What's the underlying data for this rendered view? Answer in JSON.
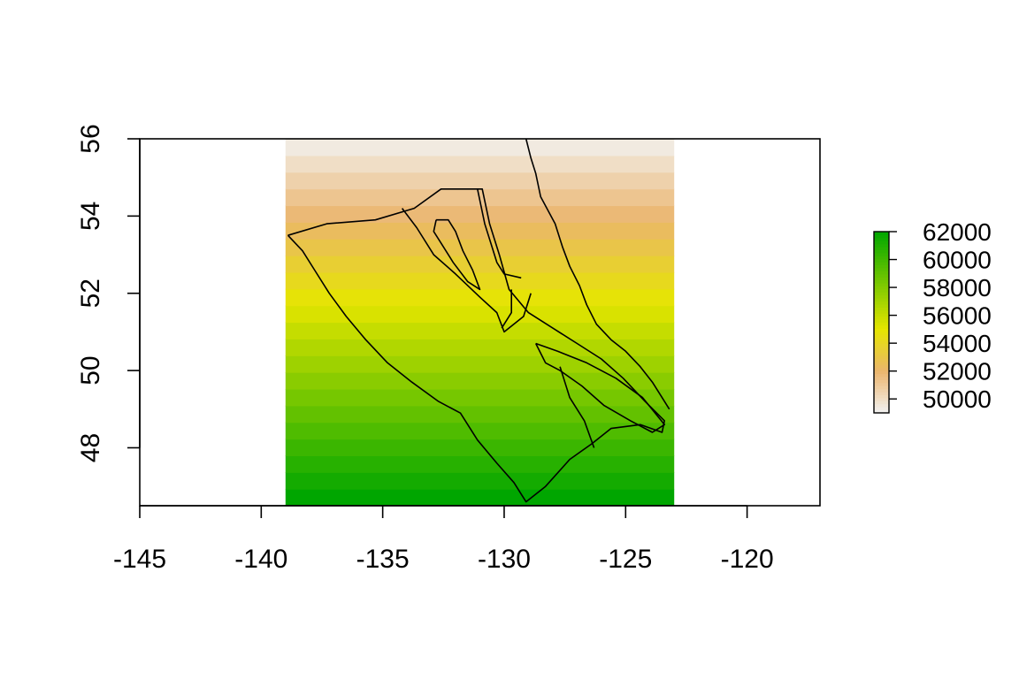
{
  "chart_data": {
    "type": "heatmap",
    "title": "",
    "xlabel": "",
    "ylabel": "",
    "xlim": [
      -145,
      -117
    ],
    "ylim": [
      46.5,
      56
    ],
    "x_ticks": [
      "-145",
      "-140",
      "-135",
      "-130",
      "-125",
      "-120"
    ],
    "x_tick_values": [
      -145,
      -140,
      -135,
      -130,
      -125,
      -120
    ],
    "y_ticks": [
      "48",
      "50",
      "52",
      "54",
      "56"
    ],
    "y_tick_values": [
      48,
      50,
      52,
      54,
      56
    ],
    "raster": {
      "xmin": -139,
      "xmax": -123,
      "ymin": 46.5,
      "ymax": 56,
      "row_values": [
        62000,
        61400,
        60800,
        60200,
        59600,
        59000,
        58400,
        57800,
        57200,
        56600,
        56000,
        55400,
        54800,
        54200,
        53600,
        53000,
        52400,
        51800,
        51200,
        50600,
        50000,
        49400
      ]
    },
    "legend": {
      "position": "right",
      "min": 49000,
      "max": 62000,
      "labels": [
        "62000",
        "60000",
        "58000",
        "56000",
        "54000",
        "52000",
        "50000"
      ],
      "label_values": [
        62000,
        60000,
        58000,
        56000,
        54000,
        52000,
        50000
      ],
      "color_stops": [
        {
          "value": 49000,
          "color": "#f2f2f2"
        },
        {
          "value": 52000,
          "color": "#ebb56d"
        },
        {
          "value": 55000,
          "color": "#e6e600"
        },
        {
          "value": 62000,
          "color": "#00a600"
        }
      ]
    },
    "overlay_polygons": [
      {
        "name": "outer region",
        "coords": [
          [
            -138.9,
            53.5
          ],
          [
            -138.3,
            53.1
          ],
          [
            -137.8,
            52.6
          ],
          [
            -137.2,
            52.0
          ],
          [
            -136.5,
            51.4
          ],
          [
            -135.7,
            50.8
          ],
          [
            -134.8,
            50.2
          ],
          [
            -133.8,
            49.7
          ],
          [
            -132.7,
            49.2
          ],
          [
            -131.8,
            48.9
          ],
          [
            -131.1,
            48.2
          ],
          [
            -130.3,
            47.6
          ],
          [
            -129.6,
            47.1
          ],
          [
            -129.1,
            46.6
          ],
          [
            -128.3,
            47.0
          ],
          [
            -127.3,
            47.7
          ],
          [
            -126.4,
            48.1
          ],
          [
            -125.6,
            48.5
          ],
          [
            -124.4,
            48.6
          ],
          [
            -123.5,
            48.4
          ],
          [
            -123.4,
            48.7
          ],
          [
            -124.2,
            49.2
          ],
          [
            -125.1,
            49.8
          ],
          [
            -126.0,
            50.3
          ],
          [
            -127.0,
            50.7
          ],
          [
            -128.0,
            51.1
          ],
          [
            -129.0,
            51.5
          ],
          [
            -129.8,
            52.1
          ],
          [
            -130.2,
            53.0
          ],
          [
            -130.6,
            53.8
          ],
          [
            -130.9,
            54.7
          ],
          [
            -131.8,
            54.7
          ],
          [
            -132.6,
            54.7
          ],
          [
            -133.7,
            54.2
          ],
          [
            -135.3,
            53.9
          ],
          [
            -137.3,
            53.8
          ],
          [
            -138.9,
            53.5
          ]
        ]
      },
      {
        "name": "inner boundary",
        "coords": [
          [
            -134.2,
            54.2
          ],
          [
            -133.6,
            53.7
          ],
          [
            -132.9,
            53.0
          ],
          [
            -132.0,
            52.5
          ],
          [
            -131.0,
            51.9
          ],
          [
            -130.3,
            51.5
          ],
          [
            -130.0,
            51.0
          ],
          [
            -129.2,
            51.4
          ],
          [
            -128.9,
            52.0
          ]
        ]
      },
      {
        "name": "north divider",
        "coords": [
          [
            -131.1,
            54.7
          ],
          [
            -130.8,
            53.8
          ],
          [
            -130.3,
            52.8
          ],
          [
            -130.0,
            52.5
          ],
          [
            -129.3,
            52.4
          ]
        ]
      },
      {
        "name": "mid divider",
        "coords": [
          [
            -129.7,
            52.1
          ],
          [
            -129.7,
            51.5
          ],
          [
            -130.1,
            51.1
          ]
        ]
      },
      {
        "name": "island outline",
        "coords": [
          [
            -128.7,
            50.7
          ],
          [
            -127.8,
            50.5
          ],
          [
            -126.6,
            50.2
          ],
          [
            -125.4,
            49.8
          ],
          [
            -124.3,
            49.3
          ],
          [
            -123.4,
            48.6
          ],
          [
            -123.9,
            48.4
          ],
          [
            -124.8,
            48.7
          ],
          [
            -125.9,
            49.1
          ],
          [
            -126.8,
            49.6
          ],
          [
            -127.7,
            50.0
          ],
          [
            -128.3,
            50.2
          ],
          [
            -128.7,
            50.7
          ]
        ]
      },
      {
        "name": "south divider",
        "coords": [
          [
            -127.7,
            50.1
          ],
          [
            -127.3,
            49.3
          ],
          [
            -126.7,
            48.7
          ],
          [
            -126.3,
            48.0
          ]
        ]
      },
      {
        "name": "north coast",
        "coords": [
          [
            -129.1,
            56.0
          ],
          [
            -128.9,
            55.5
          ],
          [
            -128.7,
            55.1
          ],
          [
            -128.5,
            54.5
          ],
          [
            -127.9,
            53.8
          ],
          [
            -127.6,
            53.2
          ],
          [
            -127.3,
            52.7
          ],
          [
            -126.9,
            52.2
          ],
          [
            -126.6,
            51.7
          ],
          [
            -126.2,
            51.2
          ],
          [
            -125.6,
            50.8
          ],
          [
            -125.0,
            50.5
          ],
          [
            -124.4,
            50.1
          ],
          [
            -123.9,
            49.7
          ],
          [
            -123.5,
            49.3
          ],
          [
            -123.2,
            49.0
          ]
        ]
      },
      {
        "name": "offshore island",
        "coords": [
          [
            -132.8,
            53.9
          ],
          [
            -132.3,
            53.9
          ],
          [
            -132.0,
            53.6
          ],
          [
            -131.7,
            53.1
          ],
          [
            -131.3,
            52.6
          ],
          [
            -131.0,
            52.1
          ],
          [
            -131.5,
            52.3
          ],
          [
            -132.1,
            52.8
          ],
          [
            -132.6,
            53.3
          ],
          [
            -132.9,
            53.6
          ],
          [
            -132.8,
            53.9
          ]
        ]
      }
    ]
  }
}
